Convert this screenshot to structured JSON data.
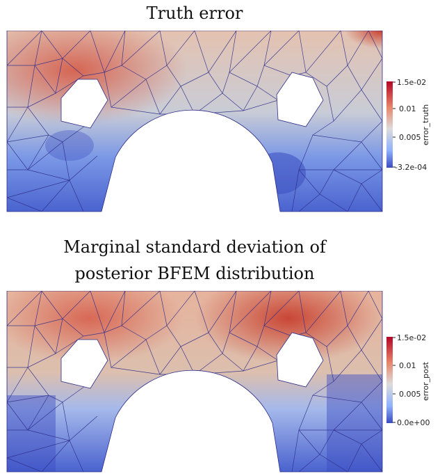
{
  "panels": [
    {
      "title_lines": [
        "Truth error"
      ],
      "colorbar": {
        "label": "error_truth",
        "ticks": [
          "1.5e-02",
          "0.01",
          "0.005",
          "-3.2e-04"
        ],
        "colors": [
          "#b40426",
          "#e7866a",
          "#dddcdc",
          "#8fb1fe",
          "#3b4cc0"
        ]
      }
    },
    {
      "title_lines": [
        "Marginal standard deviation of",
        "posterior BFEM distribution"
      ],
      "colorbar": {
        "label": "error_post",
        "ticks": [
          "1.5e-02",
          "0.01",
          "0.005",
          "0.0e+00"
        ],
        "colors": [
          "#b40426",
          "#e7866a",
          "#dddcdc",
          "#8fb1fe",
          "#3b4cc0"
        ]
      }
    }
  ]
}
